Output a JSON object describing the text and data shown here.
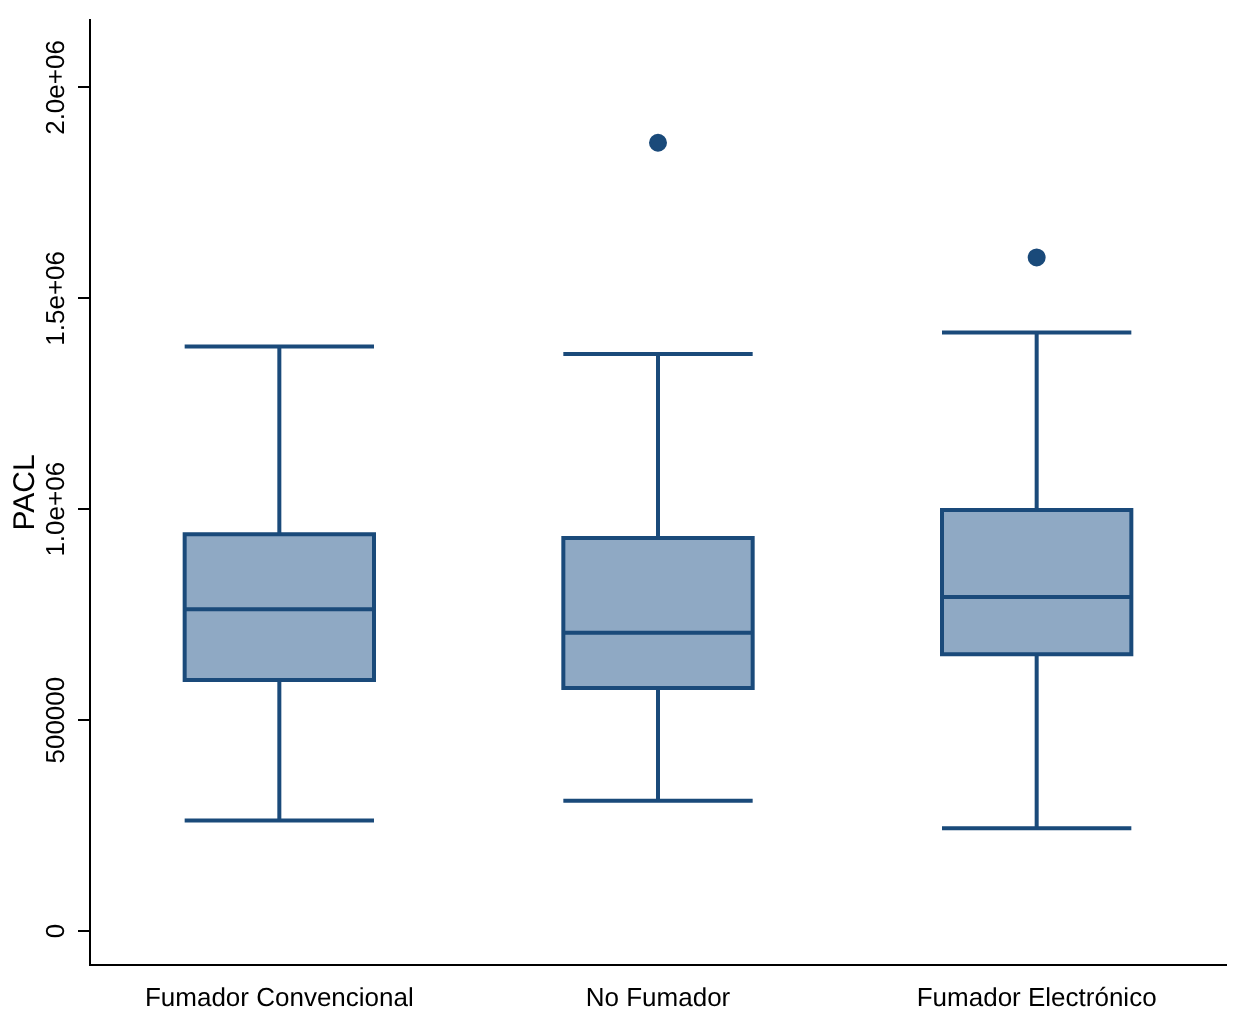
{
  "chart_data": {
    "type": "box",
    "ylabel": "PACL",
    "categories": [
      "Fumador Convencional",
      "No Fumador",
      "Fumador Electrónico"
    ],
    "series": [
      {
        "color": "#8fa9c4",
        "boxes": [
          {
            "low": 262000,
            "q1": 595000,
            "median": 763000,
            "q3": 941000,
            "high": 1386000
          },
          {
            "low": 309000,
            "q1": 576000,
            "median": 707000,
            "q3": 932000,
            "high": 1368000,
            "outliers": [
              1869000
            ]
          },
          {
            "low": 244000,
            "q1": 656000,
            "median": 792000,
            "q3": 998000,
            "high": 1419000,
            "outliers": [
              1597000
            ]
          }
        ]
      }
    ],
    "ylim": [
      -80000,
      2160000
    ],
    "yticks": [
      0,
      500000,
      {
        "value": 1000000,
        "label": "1.0e+06"
      },
      {
        "value": 1500000,
        "label": "1.5e+06"
      },
      {
        "value": 2000000,
        "label": "2.0e+06"
      }
    ],
    "grid": false,
    "legend": false
  }
}
